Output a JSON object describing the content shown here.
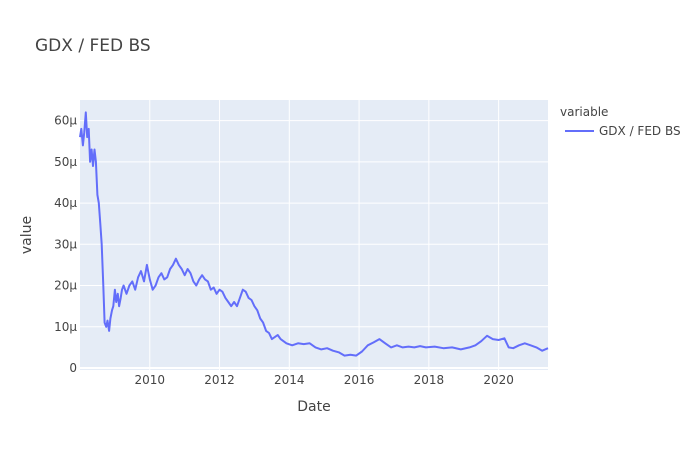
{
  "chart_data": {
    "type": "line",
    "title": "GDX / FED BS",
    "xlabel": "Date",
    "ylabel": "value",
    "x_ticks": [
      "2010",
      "2012",
      "2014",
      "2016",
      "2018",
      "2020"
    ],
    "y_ticks": [
      "0",
      "10μ",
      "20μ",
      "30μ",
      "40μ",
      "50μ",
      "60μ"
    ],
    "xlim": [
      "2008-01-01",
      "2021-05-31"
    ],
    "ylim": [
      0,
      6.5e-05
    ],
    "legend": {
      "title": "variable",
      "placement": "top-right"
    },
    "grid": true,
    "colors": {
      "plot_bg": "#E5ECF6",
      "grid": "#FFFFFF",
      "line": "#636EFA"
    },
    "series": [
      {
        "name": "GDX / FED BS",
        "x": [
          "2008-01-01",
          "2008-01-15",
          "2008-02-01",
          "2008-02-15",
          "2008-03-01",
          "2008-03-15",
          "2008-04-01",
          "2008-04-15",
          "2008-05-01",
          "2008-05-15",
          "2008-06-01",
          "2008-06-15",
          "2008-07-01",
          "2008-07-15",
          "2008-08-01",
          "2008-08-15",
          "2008-09-01",
          "2008-09-15",
          "2008-10-01",
          "2008-10-15",
          "2008-11-01",
          "2008-11-15",
          "2008-12-01",
          "2008-12-15",
          "2009-01-01",
          "2009-01-15",
          "2009-02-01",
          "2009-02-15",
          "2009-03-01",
          "2009-03-15",
          "2009-04-01",
          "2009-05-01",
          "2009-06-01",
          "2009-07-01",
          "2009-08-01",
          "2009-09-01",
          "2009-10-01",
          "2009-11-01",
          "2009-12-01",
          "2010-01-01",
          "2010-02-01",
          "2010-03-01",
          "2010-04-01",
          "2010-05-01",
          "2010-06-01",
          "2010-07-01",
          "2010-08-01",
          "2010-09-01",
          "2010-10-01",
          "2010-11-01",
          "2010-12-01",
          "2011-01-01",
          "2011-02-01",
          "2011-03-01",
          "2011-04-01",
          "2011-05-01",
          "2011-06-01",
          "2011-07-01",
          "2011-08-01",
          "2011-09-01",
          "2011-10-01",
          "2011-11-01",
          "2011-12-01",
          "2012-01-01",
          "2012-02-01",
          "2012-03-01",
          "2012-04-01",
          "2012-05-01",
          "2012-06-01",
          "2012-07-01",
          "2012-08-01",
          "2012-09-01",
          "2012-10-01",
          "2012-11-01",
          "2012-12-01",
          "2013-01-01",
          "2013-02-01",
          "2013-03-01",
          "2013-04-01",
          "2013-05-01",
          "2013-06-01",
          "2013-07-01",
          "2013-08-01",
          "2013-09-01",
          "2013-10-01",
          "2013-11-01",
          "2013-12-01",
          "2014-02-01",
          "2014-04-01",
          "2014-06-01",
          "2014-08-01",
          "2014-10-01",
          "2014-12-01",
          "2015-02-01",
          "2015-04-01",
          "2015-06-01",
          "2015-08-01",
          "2015-10-01",
          "2015-12-01",
          "2016-02-01",
          "2016-04-01",
          "2016-06-01",
          "2016-08-01",
          "2016-10-01",
          "2016-12-01",
          "2017-02-01",
          "2017-04-01",
          "2017-06-01",
          "2017-08-01",
          "2017-10-01",
          "2017-12-01",
          "2018-03-01",
          "2018-06-01",
          "2018-09-01",
          "2018-12-01",
          "2019-03-01",
          "2019-05-01",
          "2019-07-01",
          "2019-09-01",
          "2019-11-01",
          "2020-01-01",
          "2020-03-01",
          "2020-04-15",
          "2020-06-01",
          "2020-08-01",
          "2020-10-01",
          "2020-12-01",
          "2021-02-01",
          "2021-04-01",
          "2021-05-31"
        ],
        "values": [
          5.6e-05,
          5.8e-05,
          5.4e-05,
          5.7e-05,
          6.2e-05,
          5.6e-05,
          5.8e-05,
          5e-05,
          5.3e-05,
          4.9e-05,
          5.3e-05,
          5e-05,
          4.2e-05,
          4e-05,
          3.5e-05,
          3e-05,
          2e-05,
          1.1e-05,
          1e-05,
          1.15e-05,
          9e-06,
          1.2e-05,
          1.4e-05,
          1.5e-05,
          1.9e-05,
          1.6e-05,
          1.8e-05,
          1.5e-05,
          1.7e-05,
          1.9e-05,
          2e-05,
          1.8e-05,
          2e-05,
          2.1e-05,
          1.9e-05,
          2.2e-05,
          2.35e-05,
          2.1e-05,
          2.5e-05,
          2.15e-05,
          1.9e-05,
          2e-05,
          2.2e-05,
          2.3e-05,
          2.15e-05,
          2.2e-05,
          2.4e-05,
          2.5e-05,
          2.65e-05,
          2.5e-05,
          2.4e-05,
          2.25e-05,
          2.4e-05,
          2.3e-05,
          2.1e-05,
          2e-05,
          2.15e-05,
          2.25e-05,
          2.15e-05,
          2.1e-05,
          1.9e-05,
          1.95e-05,
          1.8e-05,
          1.9e-05,
          1.85e-05,
          1.7e-05,
          1.6e-05,
          1.5e-05,
          1.6e-05,
          1.5e-05,
          1.7e-05,
          1.9e-05,
          1.85e-05,
          1.7e-05,
          1.65e-05,
          1.5e-05,
          1.4e-05,
          1.2e-05,
          1.1e-05,
          9e-06,
          8.5e-06,
          7e-06,
          7.5e-06,
          8e-06,
          7e-06,
          6.5e-06,
          6e-06,
          5.5e-06,
          6e-06,
          5.8e-06,
          6e-06,
          5e-06,
          4.5e-06,
          4.8e-06,
          4.2e-06,
          3.8e-06,
          3e-06,
          3.2e-06,
          3e-06,
          4e-06,
          5.5e-06,
          6.2e-06,
          7e-06,
          6e-06,
          5e-06,
          5.5e-06,
          5e-06,
          5.2e-06,
          5e-06,
          5.3e-06,
          5e-06,
          5.2e-06,
          4.8e-06,
          5e-06,
          4.5e-06,
          5e-06,
          5.5e-06,
          6.5e-06,
          7.8e-06,
          7e-06,
          6.8e-06,
          7.2e-06,
          5e-06,
          4.8e-06,
          5.5e-06,
          6e-06,
          5.5e-06,
          5e-06,
          4.2e-06,
          4.8e-06
        ]
      }
    ]
  }
}
